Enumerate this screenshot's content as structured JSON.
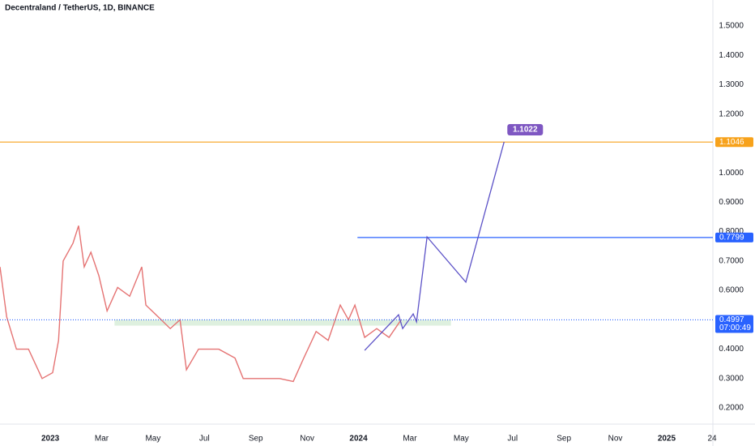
{
  "chart_data": {
    "type": "line",
    "title": "Decentraland / TetherUS, 1D, BINANCE",
    "x": [
      -1.96,
      -1.7,
      -1.32,
      -0.85,
      -0.32,
      0.09,
      0.32,
      0.5,
      0.88,
      1.1,
      1.32,
      1.58,
      1.89,
      2.21,
      2.62,
      3.09,
      3.56,
      3.72,
      4.2,
      4.67,
      5.05,
      5.3,
      5.77,
      6.56,
      7.19,
      7.51,
      8.14,
      8.93,
      9.46,
      9.87,
      10.35,
      10.82,
      11.29,
      11.61,
      11.86,
      12.24,
      12.71,
      13.19,
      13.66
    ],
    "values": [
      0.68,
      0.51,
      0.4,
      0.4,
      0.3,
      0.32,
      0.43,
      0.7,
      0.76,
      0.82,
      0.68,
      0.73,
      0.65,
      0.53,
      0.61,
      0.58,
      0.68,
      0.55,
      0.51,
      0.47,
      0.5,
      0.33,
      0.4,
      0.4,
      0.37,
      0.3,
      0.3,
      0.3,
      0.29,
      0.37,
      0.46,
      0.43,
      0.55,
      0.5,
      0.55,
      0.44,
      0.47,
      0.44,
      0.5
    ],
    "color": "#e57373",
    "projection": {
      "x": [
        12.24,
        13.56,
        13.72,
        14.13,
        14.26,
        14.67,
        16.18,
        17.67
      ],
      "values": [
        0.396,
        0.517,
        0.47,
        0.52,
        0.493,
        0.782,
        0.628,
        1.105
      ],
      "color": "#5c52c7"
    },
    "target": 1.1022,
    "levels": [
      {
        "value": 1.1046,
        "color": "#f7a21b"
      },
      {
        "value": 0.7799,
        "color": "#2962ff",
        "x_start": 11.96
      },
      {
        "value": 0.4997,
        "color": "#2962ff",
        "timer": "07:00:49"
      }
    ],
    "zone": {
      "x": [
        2.5,
        15.6
      ],
      "y": [
        0.48,
        0.5
      ],
      "color": "#c8e6c9"
    },
    "xlim": [
      -1.96,
      25.8
    ],
    "ylim": [
      0.145,
      1.588
    ],
    "yticks": [
      {
        "value": 0.2,
        "label": "0.2000"
      },
      {
        "value": 0.3,
        "label": "0.3000"
      },
      {
        "value": 0.4,
        "label": "0.4000"
      },
      {
        "value": 0.5,
        "label": "0.5000"
      },
      {
        "value": 0.6,
        "label": "0.6000"
      },
      {
        "value": 0.7,
        "label": "0.7000"
      },
      {
        "value": 0.8,
        "label": "0.8000"
      },
      {
        "value": 0.9,
        "label": "0.9000"
      },
      {
        "value": 1.0,
        "label": "1.0000"
      },
      {
        "value": 1.1,
        "label": "1.1000"
      },
      {
        "value": 1.2,
        "label": "1.2000"
      },
      {
        "value": 1.3,
        "label": "1.3000"
      },
      {
        "value": 1.4,
        "label": "1.4000"
      },
      {
        "value": 1.5,
        "label": "1.5000"
      }
    ],
    "xticks": [
      {
        "value": 0,
        "label": "2023"
      },
      {
        "value": 2,
        "label": "Mar"
      },
      {
        "value": 4,
        "label": "May"
      },
      {
        "value": 6,
        "label": "Jul"
      },
      {
        "value": 8,
        "label": "Sep"
      },
      {
        "value": 10,
        "label": "Nov"
      },
      {
        "value": 12,
        "label": "2024"
      },
      {
        "value": 14,
        "label": "Mar"
      },
      {
        "value": 16,
        "label": "May"
      },
      {
        "value": 18,
        "label": "Jul"
      },
      {
        "value": 20,
        "label": "Sep"
      },
      {
        "value": 22,
        "label": "Nov"
      },
      {
        "value": 24,
        "label": "2025"
      },
      {
        "value": 25.77,
        "label": "24"
      }
    ],
    "grid": false
  }
}
